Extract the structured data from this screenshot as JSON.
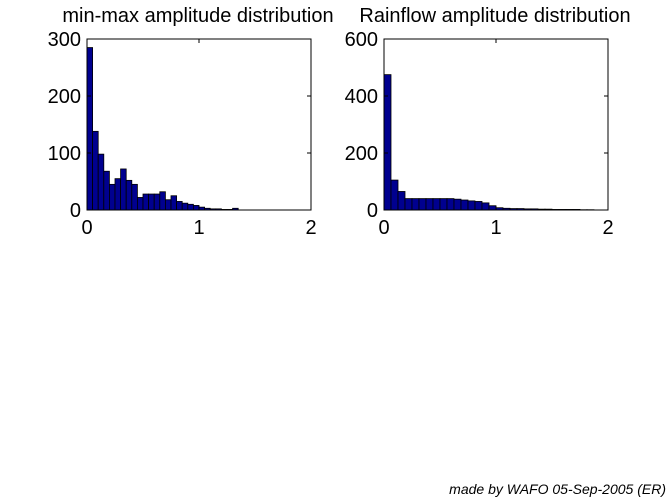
{
  "footer_text": "made by WAFO 05-Sep-2005 (ER)",
  "bar_color": "#00008f",
  "chart_data": [
    {
      "type": "bar",
      "title": "min-max amplitude distribution",
      "xlabel": "",
      "ylabel": "",
      "xlim": [
        0,
        2
      ],
      "ylim": [
        0,
        300
      ],
      "xticks": [
        "0",
        "1",
        "2"
      ],
      "yticks": [
        "0",
        "100",
        "200",
        "300"
      ],
      "bin_width": 0.05,
      "bin_starts": [
        0,
        0.05,
        0.1,
        0.15,
        0.2,
        0.25,
        0.3,
        0.35,
        0.4,
        0.45,
        0.5,
        0.55,
        0.6,
        0.65,
        0.7,
        0.75,
        0.8,
        0.85,
        0.9,
        0.95,
        1.0,
        1.05,
        1.1,
        1.15,
        1.2,
        1.25,
        1.3,
        1.35
      ],
      "values": [
        285,
        138,
        98,
        68,
        45,
        55,
        72,
        52,
        45,
        22,
        28,
        28,
        28,
        32,
        18,
        25,
        15,
        12,
        10,
        8,
        5,
        3,
        2,
        2,
        1,
        1,
        3,
        0
      ]
    },
    {
      "type": "bar",
      "title": "Rainflow amplitude distribution",
      "xlabel": "",
      "ylabel": "",
      "xlim": [
        0,
        2
      ],
      "ylim": [
        0,
        600
      ],
      "xticks": [
        "0",
        "1",
        "2"
      ],
      "yticks": [
        "0",
        "200",
        "400",
        "600"
      ],
      "bin_width": 0.0625,
      "bin_starts": [
        0,
        0.0625,
        0.125,
        0.1875,
        0.25,
        0.3125,
        0.375,
        0.4375,
        0.5,
        0.5625,
        0.625,
        0.6875,
        0.75,
        0.8125,
        0.875,
        0.9375,
        1.0,
        1.0625,
        1.125,
        1.1875,
        1.25,
        1.3125,
        1.375,
        1.4375,
        1.5,
        1.5625,
        1.625,
        1.6875,
        1.75,
        1.8125,
        1.875
      ],
      "values": [
        475,
        105,
        65,
        40,
        40,
        40,
        40,
        40,
        40,
        40,
        38,
        35,
        32,
        30,
        25,
        15,
        8,
        6,
        5,
        5,
        4,
        4,
        3,
        3,
        2,
        2,
        2,
        2,
        1,
        1,
        0
      ]
    }
  ]
}
